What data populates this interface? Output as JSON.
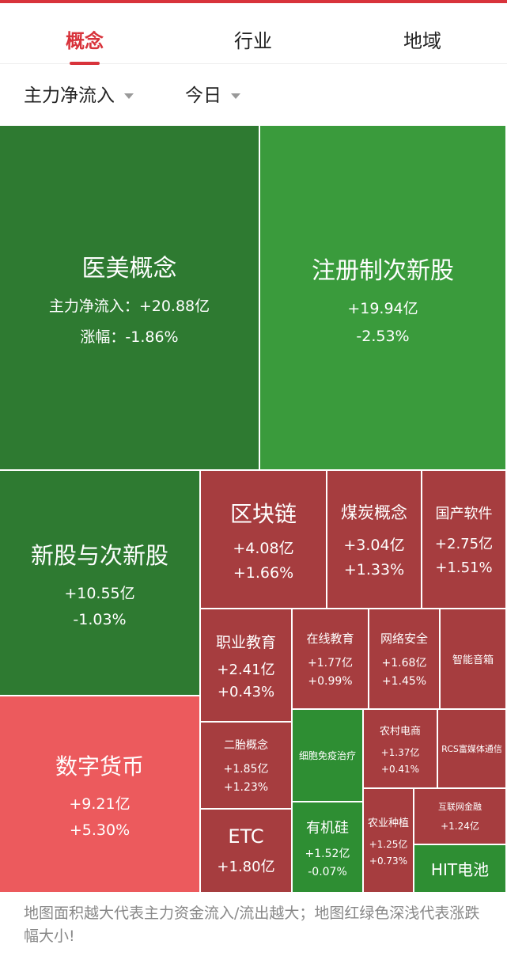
{
  "colors": {
    "accent": "#d8333b",
    "green_dark": "#2e7a31",
    "green_medium": "#3a9b3c",
    "green_light": "#2e8e33",
    "red_deep": "#a63d3f",
    "red_light": "#ec5a5d"
  },
  "tabs": [
    {
      "label": "概念",
      "active": true
    },
    {
      "label": "行业",
      "active": false
    },
    {
      "label": "地域",
      "active": false
    }
  ],
  "filters": {
    "metric": "主力净流入",
    "period": "今日"
  },
  "treemap": {
    "cells": [
      {
        "name": "医美概念",
        "flow": "主力净流入：+20.88亿",
        "change": "涨幅：-1.86%"
      },
      {
        "name": "注册制次新股",
        "flow": "+19.94亿",
        "change": "-2.53%"
      },
      {
        "name": "新股与次新股",
        "flow": "+10.55亿",
        "change": "-1.03%"
      },
      {
        "name": "区块链",
        "flow": "+4.08亿",
        "change": "+1.66%"
      },
      {
        "name": "煤炭概念",
        "flow": "+3.04亿",
        "change": "+1.33%"
      },
      {
        "name": "国产软件",
        "flow": "+2.75亿",
        "change": "+1.51%"
      },
      {
        "name": "数字货币",
        "flow": "+9.21亿",
        "change": "+5.30%"
      },
      {
        "name": "职业教育",
        "flow": "+2.41亿",
        "change": "+0.43%"
      },
      {
        "name": "在线教育",
        "flow": "+1.77亿",
        "change": "+0.99%"
      },
      {
        "name": "网络安全",
        "flow": "+1.68亿",
        "change": "+1.45%"
      },
      {
        "name": "智能音箱"
      },
      {
        "name": "二胎概念",
        "flow": "+1.85亿",
        "change": "+1.23%"
      },
      {
        "name": "细胞免疫治疗"
      },
      {
        "name": "农村电商",
        "flow": "+1.37亿",
        "change": "+0.41%"
      },
      {
        "name": "RCS富媒体通信"
      },
      {
        "name": "ETC",
        "flow": "+1.80亿"
      },
      {
        "name": "有机硅",
        "flow": "+1.52亿",
        "change": "-0.07%"
      },
      {
        "name": "农业种植",
        "flow": "+1.25亿",
        "change": "+0.73%"
      },
      {
        "name": "互联网金融",
        "flow": "+1.24亿"
      },
      {
        "name": "HIT电池"
      }
    ]
  },
  "footer_note": "地图面积越大代表主力资金流入/流出越大；地图红绿色深浅代表涨跌幅大小!"
}
